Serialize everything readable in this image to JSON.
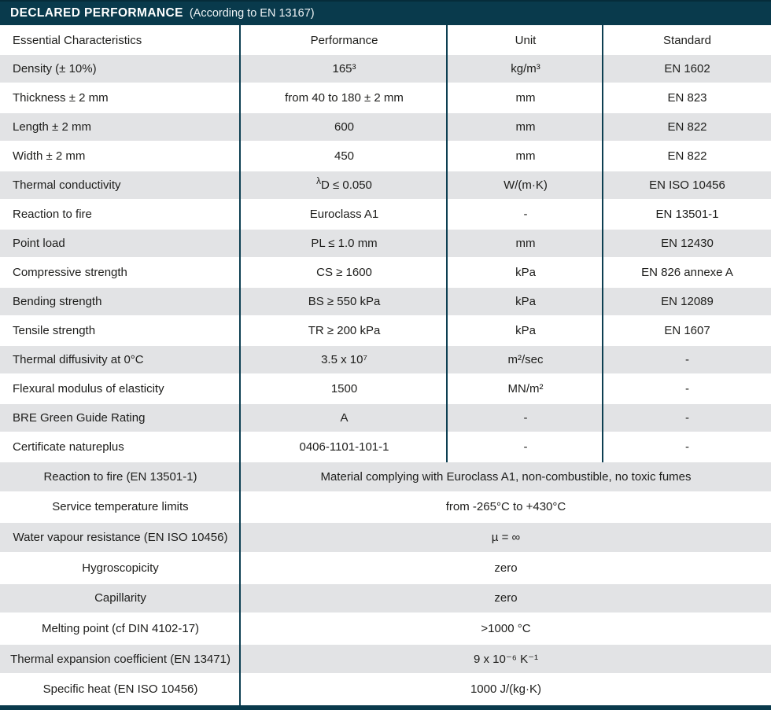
{
  "header": {
    "title": "DECLARED PERFORMANCE",
    "subtitle": "(According to EN 13167)"
  },
  "colors": {
    "accent_teal": "#093a4c",
    "row_alt_gray": "#e2e3e5",
    "text": "#1d1d1b"
  },
  "table": {
    "columns": [
      "Essential Characteristics",
      "Performance",
      "Unit",
      "Standard"
    ],
    "rows": [
      {
        "characteristic": "Density (± 10%)",
        "performance": "165³",
        "unit": "kg/m³",
        "standard": "EN 1602"
      },
      {
        "characteristic": "Thickness ± 2 mm",
        "performance": "from 40 to 180 ± 2 mm",
        "unit": "mm",
        "standard": "EN 823"
      },
      {
        "characteristic": "Length ± 2 mm",
        "performance": "600",
        "unit": "mm",
        "standard": "EN 822"
      },
      {
        "characteristic": "Width ± 2 mm",
        "performance": "450",
        "unit": "mm",
        "standard": "EN 822"
      },
      {
        "characteristic": "Thermal conductivity",
        "sup_prefix": "λ",
        "performance": "D ≤ 0.050",
        "unit": "W/(m·K)",
        "standard": "EN ISO 10456"
      },
      {
        "characteristic": "Reaction to fire",
        "performance": "Euroclass A1",
        "unit": "-",
        "standard": "EN 13501-1"
      },
      {
        "characteristic": "Point load",
        "performance": "PL  ≤ 1.0 mm",
        "unit": "mm",
        "standard": "EN 12430"
      },
      {
        "characteristic": "Compressive strength",
        "performance": "CS  ≥ 1600",
        "unit": "kPa",
        "standard": "EN 826 annexe A"
      },
      {
        "characteristic": "Bending strength",
        "performance": "BS  ≥ 550 kPa",
        "unit": "kPa",
        "standard": "EN 12089"
      },
      {
        "characteristic": "Tensile strength",
        "performance": "TR  ≥ 200 kPa",
        "unit": "kPa",
        "standard": "EN 1607"
      },
      {
        "characteristic": "Thermal diffusivity at 0°C",
        "performance": "3.5 x 10⁷",
        "unit": "m²/sec",
        "standard": "-"
      },
      {
        "characteristic": "Flexural modulus of elasticity",
        "performance": "1500",
        "unit": "MN/m²",
        "standard": "-"
      },
      {
        "characteristic": "BRE Green Guide Rating",
        "performance": "A",
        "unit": "-",
        "standard": "-"
      },
      {
        "characteristic": "Certificate natureplus",
        "performance": "0406-1101-101-1",
        "unit": "-",
        "standard": "-"
      }
    ]
  },
  "properties": {
    "rows": [
      {
        "characteristic": "Reaction to fire (EN 13501-1)",
        "value": "Material complying with Euroclass A1, non-combustible, no toxic fumes"
      },
      {
        "characteristic": "Service temperature limits",
        "value": "from -265°C to +430°C"
      },
      {
        "characteristic": "Water vapour resistance (EN ISO 10456)",
        "value": "µ = ∞"
      },
      {
        "characteristic": "Hygroscopicity",
        "value": "zero"
      },
      {
        "characteristic": "Capillarity",
        "value": "zero"
      },
      {
        "characteristic": "Melting point (cf DIN 4102-17)",
        "value": ">1000 °C"
      },
      {
        "characteristic": "Thermal expansion coefficient (EN 13471)",
        "value": "9 x 10⁻⁶ K⁻¹"
      },
      {
        "characteristic": "Specific heat (EN ISO 10456)",
        "value": "1000 J/(kg·K)"
      }
    ]
  }
}
